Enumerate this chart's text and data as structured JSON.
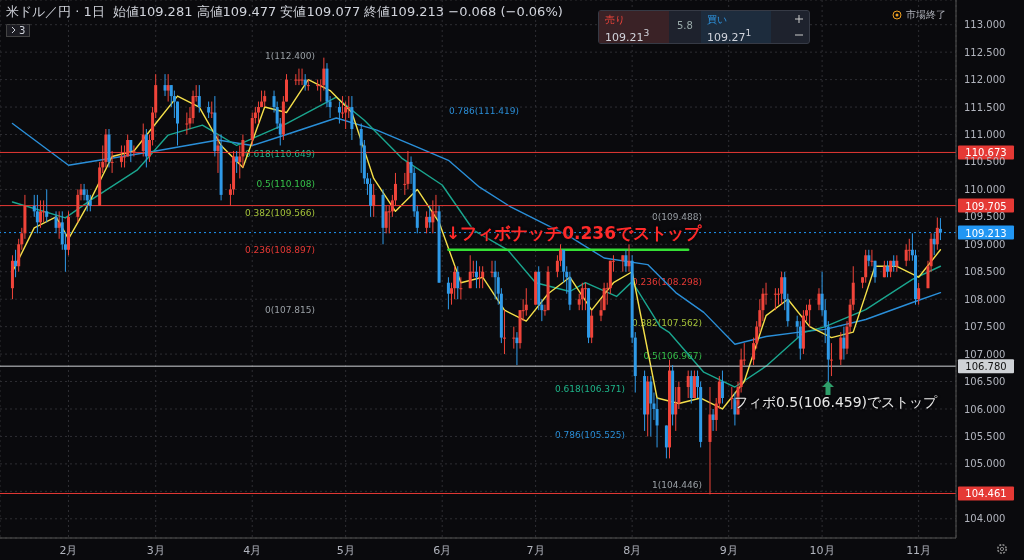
{
  "chart_data": {
    "type": "candlestick",
    "title": "米ドル／円 · 1日",
    "subtitle": "始値109.281 高値109.477 安値109.077 終値109.213 −0.068 (−0.06%)",
    "xlim": [
      "--01-10",
      "--11-13"
    ],
    "xticks": [
      {
        "value": "--02-01",
        "label": "2月"
      },
      {
        "value": "--03-01",
        "label": "3月"
      },
      {
        "value": "--04-01",
        "label": "4月"
      },
      {
        "value": "--05-01",
        "label": "5月"
      },
      {
        "value": "--06-01",
        "label": "6月"
      },
      {
        "value": "--07-01",
        "label": "7月"
      },
      {
        "value": "--08-01",
        "label": "8月"
      },
      {
        "value": "--09-01",
        "label": "9月"
      },
      {
        "value": "--10-01",
        "label": "10月"
      },
      {
        "value": "--11-01",
        "label": "11月"
      }
    ],
    "ylim": [
      103.65,
      113.45
    ],
    "yticks": [
      {
        "value": 104,
        "label": "104.000"
      },
      {
        "value": 104.5,
        "label": null
      },
      {
        "value": 105,
        "label": "105.000"
      },
      {
        "value": 105.5,
        "label": "105.500"
      },
      {
        "value": 106,
        "label": "106.000"
      },
      {
        "value": 106.5,
        "label": "106.500"
      },
      {
        "value": 107,
        "label": "107.000"
      },
      {
        "value": 107.5,
        "label": "107.500"
      },
      {
        "value": 108,
        "label": "108.000"
      },
      {
        "value": 108.5,
        "label": "108.500"
      },
      {
        "value": 109,
        "label": "109.000"
      },
      {
        "value": 109.5,
        "label": "109.500"
      },
      {
        "value": 110,
        "label": "110.000"
      },
      {
        "value": 110.5,
        "label": "110.500"
      },
      {
        "value": 111,
        "label": "111.000"
      },
      {
        "value": 111.5,
        "label": "111.500"
      },
      {
        "value": 112,
        "label": "112.000"
      },
      {
        "value": 112.5,
        "label": "112.500"
      },
      {
        "value": 113,
        "label": "113.000"
      }
    ],
    "grid": true,
    "series": [
      {
        "type": "line",
        "color": "#2a8fd9",
        "x": [
          "--01-14",
          "--02-01",
          "--03-01",
          "--03-21",
          "--04-01",
          "--04-12",
          "--04-28",
          "--05-11",
          "--05-24",
          "--06-03",
          "--06-13",
          "--06-23",
          "--07-12",
          "--07-23",
          "--08-06",
          "--08-15",
          "--08-24",
          "--09-03",
          "--09-13",
          "--09-25",
          "--10-02",
          "--10-15",
          "--10-30",
          "--11-08"
        ],
        "values": [
          111.2,
          110.44,
          110.7,
          110.9,
          110.8,
          111.0,
          111.3,
          111.08,
          110.77,
          110.53,
          110.04,
          109.68,
          109.14,
          108.75,
          108.63,
          108.12,
          107.76,
          107.18,
          107.32,
          107.41,
          107.45,
          107.63,
          107.94,
          108.12
        ]
      },
      {
        "type": "line",
        "color": "#1aa68f",
        "x": [
          "--01-14",
          "--01-31",
          "--02-08",
          "--02-23",
          "--03-05",
          "--03-16",
          "--03-27",
          "--04-12",
          "--04-28",
          "--05-07",
          "--05-19",
          "--06-01",
          "--06-11",
          "--06-22",
          "--07-01",
          "--07-12",
          "--07-17",
          "--07-27",
          "--08-01",
          "--08-10",
          "--08-13",
          "--08-24",
          "--09-03",
          "--09-13",
          "--09-25",
          "--10-02",
          "--10-15",
          "--10-30",
          "--11-08"
        ],
        "values": [
          109.77,
          109.48,
          109.8,
          110.35,
          110.99,
          111.17,
          110.8,
          111.2,
          111.68,
          111.26,
          110.57,
          110.08,
          109.26,
          108.9,
          108.3,
          108.14,
          108.3,
          108.05,
          108.32,
          107.5,
          107.39,
          106.67,
          106.4,
          106.78,
          107.39,
          107.5,
          107.81,
          108.36,
          108.6
        ]
      },
      {
        "type": "line",
        "color": "#f5e04a",
        "x": [
          "--01-14",
          "--01-21",
          "--01-28",
          "--02-01",
          "--02-08",
          "--02-15",
          "--02-22",
          "--03-01",
          "--03-08",
          "--03-15",
          "--03-22",
          "--03-29",
          "--04-05",
          "--04-12",
          "--04-19",
          "--04-26",
          "--05-03",
          "--05-10",
          "--05-17",
          "--05-24",
          "--05-31",
          "--06-07",
          "--06-14",
          "--06-21",
          "--06-28",
          "--07-05",
          "--07-12",
          "--07-19",
          "--07-26",
          "--08-01",
          "--08-09",
          "--08-16",
          "--08-23",
          "--08-30",
          "--09-06",
          "--09-13",
          "--09-20",
          "--09-27",
          "--10-04",
          "--10-11",
          "--10-18",
          "--10-25",
          "--11-01",
          "--11-08"
        ],
        "values": [
          108.5,
          109.3,
          109.5,
          109.1,
          109.8,
          110.6,
          110.7,
          111.2,
          111.7,
          111.5,
          110.8,
          110.4,
          111.5,
          111.4,
          112.0,
          111.8,
          111.4,
          110.2,
          109.6,
          110.0,
          109.4,
          108.3,
          108.4,
          107.8,
          107.6,
          108.1,
          108.4,
          107.8,
          108.3,
          108.5,
          106.2,
          106.1,
          106.2,
          106.0,
          106.5,
          107.7,
          108.0,
          107.5,
          107.3,
          107.4,
          108.6,
          108.6,
          108.4,
          108.9
        ]
      },
      {
        "type": "line",
        "color": "#35e035",
        "x": [
          "--06-03",
          "--08-19"
        ],
        "values": [
          108.9,
          108.9
        ]
      },
      {
        "colors": [
          "#f0443a",
          "#2f9ae8",
          "#f0443a",
          "#f0443a",
          "#f0443a",
          "#2f9ae8",
          "#2f9ae8",
          "#f0443a",
          "#f0443a",
          "#2f9ae8",
          "#2f9ae8",
          "#f0443a",
          "#2f9ae8",
          "#2f9ae8",
          "#f0443a",
          "#f0443a",
          "#f0443a",
          "#2f9ae8",
          "#2f9ae8",
          "#2f9ae8",
          "#f0443a",
          "#f0443a",
          "#f0443a",
          "#2f9ae8",
          "#f0443a",
          "#f0443a",
          "#f0443a",
          "#f0443a",
          "#2f9ae8",
          "#f0443a",
          "#f0443a",
          "#2f9ae8",
          "#f0443a",
          "#f0443a",
          "#f0443a",
          "#2f9ae8",
          "#f0443a",
          "#2f9ae8",
          "#2f9ae8",
          "#2f9ae8",
          "#f0443a",
          "#f0443a",
          "#f0443a",
          "#f0443a",
          "#2f9ae8",
          "#2f9ae8",
          "#f0443a",
          "#2f9ae8",
          "#f0443a",
          "#2f9ae8",
          "#f0443a",
          "#f0443a",
          "#2f9ae8",
          "#f0443a",
          "#f0443a",
          "#f0443a",
          "#f0443a",
          "#f0443a",
          "#f0443a",
          "#f0443a",
          "#2f9ae8",
          "#2f9ae8",
          "#2f9ae8",
          "#f0443a",
          "#f0443a",
          "#f0443a",
          "#f0443a",
          "#f0443a",
          "#2f9ae8",
          "#f0443a",
          "#f0443a",
          "#f0443a",
          "#f0443a",
          "#2f9ae8",
          "#2f9ae8",
          "#2f9ae8",
          "#f0443a",
          "#f0443a",
          "#f0443a",
          "#2f9ae8",
          "#2f9ae8",
          "#2f9ae8",
          "#2f9ae8",
          "#2f9ae8",
          "#f0443a",
          "#2f9ae8",
          "#f0443a",
          "#f0443a",
          "#f0443a",
          "#f0443a",
          "#f0443a",
          "#f0443a",
          "#2f9ae8",
          "#2f9ae8",
          "#2f9ae8",
          "#f0443a",
          "#2f9ae8",
          "#f0443a",
          "#f0443a",
          "#2f9ae8",
          "#2f9ae8",
          "#f0443a",
          "#f0443a",
          "#2f9ae8",
          "#f0443a",
          "#f0443a",
          "#f0443a",
          "#2f9ae8",
          "#f0443a",
          "#f0443a",
          "#f0443a",
          "#2f9ae8",
          "#2f9ae8",
          "#2f9ae8",
          "#f0443a",
          "#f0443a",
          "#2f9ae8",
          "#f0443a",
          "#f0443a",
          "#f0443a",
          "#f0443a",
          "#2f9ae8",
          "#2f9ae8",
          "#f0443a",
          "#f0443a",
          "#f0443a",
          "#f0443a",
          "#2f9ae8",
          "#2f9ae8",
          "#2f9ae8",
          "#f0443a",
          "#f0443a",
          "#f0443a",
          "#2f9ae8",
          "#f0443a",
          "#f0443a",
          "#f0443a",
          "#f0443a",
          "#f0443a",
          "#f0443a",
          "#f0443a",
          "#2f9ae8",
          "#f0443a",
          "#2f9ae8",
          "#2f9ae8",
          "#2f9ae8",
          "#f0443a",
          "#2f9ae8",
          "#2f9ae8",
          "#2f9ae8",
          "#2f9ae8",
          "#f0443a",
          "#2f9ae8",
          "#f0443a",
          "#f0443a",
          "#f0443a",
          "#2f9ae8",
          "#f0443a",
          "#2f9ae8",
          "#2f9ae8",
          "#f0443a",
          "#2f9ae8",
          "#f0443a",
          "#f0443a",
          "#2f9ae8",
          "#f0443a",
          "#2f9ae8",
          "#f0443a",
          "#f0443a",
          "#f0443a",
          "#f0443a",
          "#f0443a",
          "#f0443a",
          "#f0443a",
          "#f0443a",
          "#f0443a",
          "#f0443a",
          "#f0443a",
          "#2f9ae8",
          "#2f9ae8",
          "#2f9ae8",
          "#2f9ae8",
          "#f0443a",
          "#f0443a",
          "#f0443a",
          "#f0443a",
          "#2f9ae8",
          "#2f9ae8",
          "#2f9ae8",
          "#f0443a",
          "#f0443a",
          "#2f9ae8",
          "#f0443a",
          "#f0443a",
          "#f0443a",
          "#f0443a",
          "#f0443a",
          "#2f9ae8",
          "#f0443a",
          "#2f9ae8",
          "#f0443a",
          "#2f9ae8",
          "#f0443a",
          "#2f9ae8",
          "#f0443a",
          "#f0443a",
          "#f0443a",
          "#2f9ae8",
          "#2f9ae8",
          "#f0443a",
          "#f0443a",
          "#f0443a",
          "#2f9ae8",
          "#f0443a",
          "#2f9ae8"
        ],
        "x": [
          "--01-14",
          "--01-15",
          "--01-16",
          "--01-17",
          "--01-18",
          "--01-21",
          "--01-22",
          "--01-23",
          "--01-24",
          "--01-25",
          "--01-28",
          "--01-29",
          "--01-30",
          "--01-31",
          "--02-01",
          "--02-04",
          "--02-05",
          "--02-06",
          "--02-07",
          "--02-08",
          "--02-11",
          "--02-12",
          "--02-13",
          "--02-14",
          "--02-15",
          "--02-18",
          "--02-19",
          "--02-20",
          "--02-21",
          "--02-22",
          "--02-25",
          "--02-26",
          "--02-27",
          "--02-28",
          "--03-01",
          "--03-04",
          "--03-05",
          "--03-06",
          "--03-07",
          "--03-08",
          "--03-11",
          "--03-12",
          "--03-13",
          "--03-14",
          "--03-15",
          "--03-18",
          "--03-19",
          "--03-20",
          "--03-21",
          "--03-22",
          "--03-25",
          "--03-26",
          "--03-27",
          "--03-28",
          "--03-29",
          "--04-01",
          "--04-02",
          "--04-03",
          "--04-04",
          "--04-05",
          "--04-08",
          "--04-09",
          "--04-10",
          "--04-11",
          "--04-12",
          "--04-15",
          "--04-16",
          "--04-17",
          "--04-18",
          "--04-19",
          "--04-22",
          "--04-23",
          "--04-24",
          "--04-25",
          "--04-26",
          "--04-29",
          "--04-30",
          "--05-01",
          "--05-02",
          "--05-03",
          "--05-06",
          "--05-07",
          "--05-08",
          "--05-09",
          "--05-10",
          "--05-13",
          "--05-14",
          "--05-15",
          "--05-16",
          "--05-17",
          "--05-20",
          "--05-21",
          "--05-22",
          "--05-23",
          "--05-24",
          "--05-27",
          "--05-28",
          "--05-29",
          "--05-30",
          "--05-31",
          "--06-03",
          "--06-04",
          "--06-05",
          "--06-06",
          "--06-07",
          "--06-10",
          "--06-11",
          "--06-12",
          "--06-13",
          "--06-14",
          "--06-17",
          "--06-18",
          "--06-19",
          "--06-20",
          "--06-21",
          "--06-24",
          "--06-25",
          "--06-26",
          "--06-27",
          "--06-28",
          "--07-01",
          "--07-02",
          "--07-03",
          "--07-04",
          "--07-05",
          "--07-08",
          "--07-09",
          "--07-10",
          "--07-11",
          "--07-12",
          "--07-15",
          "--07-16",
          "--07-17",
          "--07-18",
          "--07-19",
          "--07-22",
          "--07-23",
          "--07-24",
          "--07-25",
          "--07-26",
          "--07-29",
          "--07-30",
          "--07-31",
          "--08-01",
          "--08-02",
          "--08-05",
          "--08-06",
          "--08-07",
          "--08-08",
          "--08-09",
          "--08-12",
          "--08-13",
          "--08-14",
          "--08-15",
          "--08-16",
          "--08-19",
          "--08-20",
          "--08-21",
          "--08-22",
          "--08-23",
          "--08-26",
          "--08-27",
          "--08-28",
          "--08-29",
          "--08-30",
          "--09-02",
          "--09-03",
          "--09-04",
          "--09-05",
          "--09-06",
          "--09-09",
          "--09-10",
          "--09-11",
          "--09-12",
          "--09-13",
          "--09-16",
          "--09-17",
          "--09-18",
          "--09-19",
          "--09-20",
          "--09-23",
          "--09-24",
          "--09-25",
          "--09-26",
          "--09-27",
          "--09-30",
          "--10-01",
          "--10-02",
          "--10-03",
          "--10-04",
          "--10-07",
          "--10-08",
          "--10-09",
          "--10-10",
          "--10-11",
          "--10-14",
          "--10-15",
          "--10-16",
          "--10-17",
          "--10-18",
          "--10-21",
          "--10-22",
          "--10-23",
          "--10-24",
          "--10-25",
          "--10-28",
          "--10-29",
          "--10-30",
          "--10-31",
          "--11-01",
          "--11-04",
          "--11-05",
          "--11-06",
          "--11-07",
          "--11-08"
        ],
        "ohlc": [
          [
            108.2,
            108.8,
            108.0,
            108.7
          ],
          [
            108.7,
            108.9,
            108.4,
            108.6
          ],
          [
            108.6,
            109.1,
            108.5,
            109.0
          ],
          [
            109.0,
            109.3,
            108.9,
            109.2
          ],
          [
            109.2,
            109.9,
            109.1,
            109.7
          ],
          [
            109.7,
            109.9,
            109.5,
            109.6
          ],
          [
            109.6,
            109.9,
            109.2,
            109.4
          ],
          [
            109.4,
            109.8,
            109.3,
            109.6
          ],
          [
            109.6,
            109.8,
            109.4,
            109.6
          ],
          [
            109.6,
            110.0,
            109.4,
            109.5
          ],
          [
            109.5,
            109.6,
            109.2,
            109.3
          ],
          [
            109.3,
            109.6,
            109.1,
            109.4
          ],
          [
            109.4,
            109.6,
            108.9,
            109.0
          ],
          [
            109.0,
            109.2,
            108.5,
            108.9
          ],
          [
            108.9,
            109.6,
            108.8,
            109.5
          ],
          [
            109.5,
            110.0,
            109.4,
            109.9
          ],
          [
            109.9,
            110.1,
            109.8,
            110.0
          ],
          [
            110.0,
            110.1,
            109.8,
            109.9
          ],
          [
            109.9,
            110.0,
            109.6,
            109.8
          ],
          [
            109.8,
            109.9,
            109.6,
            109.7
          ],
          [
            109.7,
            110.5,
            109.7,
            110.4
          ],
          [
            110.4,
            110.8,
            110.3,
            110.5
          ],
          [
            110.5,
            111.1,
            110.4,
            111.0
          ],
          [
            111.0,
            111.1,
            110.4,
            110.5
          ],
          [
            110.5,
            110.7,
            110.3,
            110.5
          ],
          [
            110.5,
            110.8,
            110.4,
            110.6
          ],
          [
            110.6,
            110.8,
            110.4,
            110.6
          ],
          [
            110.6,
            111.0,
            110.6,
            110.9
          ],
          [
            110.9,
            110.9,
            110.5,
            110.7
          ],
          [
            110.7,
            110.8,
            110.6,
            110.7
          ],
          [
            110.7,
            111.2,
            110.6,
            111.0
          ],
          [
            111.0,
            111.1,
            110.4,
            110.6
          ],
          [
            110.6,
            111.0,
            110.5,
            110.9
          ],
          [
            110.9,
            111.5,
            110.8,
            111.4
          ],
          [
            111.4,
            112.1,
            111.3,
            111.9
          ],
          [
            111.9,
            112.1,
            111.7,
            111.8
          ],
          [
            111.8,
            112.1,
            111.6,
            111.9
          ],
          [
            111.9,
            111.9,
            111.5,
            111.7
          ],
          [
            111.7,
            111.8,
            111.3,
            111.6
          ],
          [
            111.6,
            111.6,
            110.8,
            111.2
          ],
          [
            111.2,
            111.4,
            111.0,
            111.2
          ],
          [
            111.2,
            111.5,
            111.1,
            111.3
          ],
          [
            111.3,
            111.8,
            111.2,
            111.7
          ],
          [
            111.7,
            111.9,
            111.6,
            111.7
          ],
          [
            111.7,
            111.9,
            111.4,
            111.5
          ],
          [
            111.5,
            111.6,
            111.3,
            111.4
          ],
          [
            111.4,
            111.6,
            111.3,
            111.4
          ],
          [
            111.4,
            111.7,
            110.6,
            110.7
          ],
          [
            110.7,
            111.0,
            110.3,
            110.8
          ],
          [
            110.8,
            111.0,
            109.8,
            109.9
          ],
          [
            109.9,
            110.1,
            109.7,
            110.0
          ],
          [
            110.0,
            110.7,
            109.9,
            110.6
          ],
          [
            110.6,
            110.7,
            110.3,
            110.5
          ],
          [
            110.5,
            110.8,
            110.2,
            110.6
          ],
          [
            110.6,
            111.0,
            110.4,
            110.9
          ],
          [
            110.9,
            111.4,
            110.8,
            111.3
          ],
          [
            111.3,
            111.5,
            111.2,
            111.4
          ],
          [
            111.4,
            111.6,
            111.2,
            111.5
          ],
          [
            111.5,
            111.8,
            111.5,
            111.6
          ],
          [
            111.6,
            111.8,
            111.5,
            111.7
          ],
          [
            111.7,
            111.8,
            111.4,
            111.5
          ],
          [
            111.5,
            111.6,
            111.1,
            111.2
          ],
          [
            111.2,
            111.3,
            110.8,
            111.0
          ],
          [
            111.0,
            111.7,
            110.9,
            111.6
          ],
          [
            111.6,
            112.1,
            111.6,
            112.0
          ],
          [
            112.0,
            112.1,
            111.9,
            112.0
          ],
          [
            112.0,
            112.2,
            111.9,
            112.0
          ],
          [
            112.0,
            112.2,
            111.9,
            112.0
          ],
          [
            112.0,
            112.1,
            111.8,
            111.9
          ],
          [
            111.9,
            112.0,
            111.8,
            111.9
          ],
          [
            111.9,
            112.0,
            111.8,
            111.9
          ],
          [
            111.9,
            112.0,
            111.6,
            111.9
          ],
          [
            111.9,
            112.4,
            111.8,
            112.2
          ],
          [
            112.2,
            112.3,
            111.5,
            111.6
          ],
          [
            111.6,
            111.7,
            111.3,
            111.5
          ],
          [
            111.5,
            111.6,
            111.2,
            111.4
          ],
          [
            111.4,
            111.7,
            111.3,
            111.4
          ],
          [
            111.4,
            111.6,
            111.1,
            111.5
          ],
          [
            111.5,
            111.7,
            111.3,
            111.5
          ],
          [
            111.5,
            111.7,
            110.9,
            111.1
          ],
          [
            111.1,
            111.2,
            110.3,
            110.8
          ],
          [
            110.8,
            110.9,
            110.1,
            110.2
          ],
          [
            110.2,
            110.3,
            109.9,
            110.1
          ],
          [
            110.1,
            110.2,
            109.5,
            109.7
          ],
          [
            109.7,
            110.1,
            109.5,
            109.9
          ],
          [
            109.9,
            110.0,
            109.0,
            109.3
          ],
          [
            109.3,
            109.7,
            109.2,
            109.6
          ],
          [
            109.6,
            109.7,
            109.2,
            109.6
          ],
          [
            109.6,
            109.9,
            109.5,
            109.8
          ],
          [
            109.8,
            110.3,
            109.7,
            110.1
          ],
          [
            110.1,
            110.3,
            109.9,
            110.1
          ],
          [
            110.1,
            110.7,
            110.0,
            110.5
          ],
          [
            110.5,
            110.6,
            110.1,
            110.3
          ],
          [
            110.3,
            110.4,
            109.5,
            109.6
          ],
          [
            109.6,
            109.7,
            109.2,
            109.3
          ],
          [
            109.3,
            109.6,
            109.2,
            109.5
          ],
          [
            109.5,
            109.7,
            109.3,
            109.4
          ],
          [
            109.4,
            109.8,
            109.2,
            109.6
          ],
          [
            109.6,
            109.9,
            109.5,
            109.6
          ],
          [
            109.6,
            109.7,
            108.3,
            108.3
          ],
          [
            108.3,
            108.4,
            107.815,
            108.1
          ],
          [
            108.1,
            108.3,
            107.9,
            108.2
          ],
          [
            108.2,
            108.6,
            108.0,
            108.5
          ],
          [
            108.5,
            108.6,
            108.0,
            108.2
          ],
          [
            108.2,
            108.4,
            108.0,
            108.2
          ],
          [
            108.2,
            108.8,
            108.2,
            108.5
          ],
          [
            108.5,
            108.7,
            108.4,
            108.5
          ],
          [
            108.5,
            108.7,
            108.2,
            108.4
          ],
          [
            108.4,
            108.6,
            108.2,
            108.4
          ],
          [
            108.4,
            108.6,
            108.2,
            108.5
          ],
          [
            108.5,
            108.7,
            108.4,
            108.5
          ],
          [
            108.5,
            108.7,
            108.0,
            108.4
          ],
          [
            108.4,
            108.5,
            107.9,
            108.1
          ],
          [
            108.1,
            108.2,
            107.2,
            107.3
          ],
          [
            107.3,
            107.8,
            107.0,
            107.3
          ],
          [
            107.3,
            107.5,
            107.1,
            107.3
          ],
          [
            107.3,
            107.4,
            106.8,
            107.2
          ],
          [
            107.2,
            107.8,
            107.1,
            107.8
          ],
          [
            107.8,
            108.0,
            107.6,
            107.8
          ],
          [
            107.8,
            108.2,
            107.7,
            107.9
          ],
          [
            107.9,
            108.5,
            107.9,
            108.5
          ],
          [
            108.5,
            108.6,
            107.8,
            107.9
          ],
          [
            107.9,
            108.0,
            107.6,
            107.8
          ],
          [
            107.8,
            107.9,
            107.7,
            107.8
          ],
          [
            107.8,
            108.6,
            107.8,
            108.5
          ],
          [
            108.5,
            108.8,
            108.4,
            108.7
          ],
          [
            108.7,
            109.0,
            108.6,
            108.9
          ],
          [
            108.9,
            108.9,
            108.3,
            108.5
          ],
          [
            108.5,
            108.6,
            108.1,
            108.4
          ],
          [
            108.4,
            108.5,
            107.8,
            107.9
          ],
          [
            107.9,
            108.1,
            107.8,
            108.0
          ],
          [
            108.0,
            108.3,
            107.8,
            108.2
          ],
          [
            108.2,
            108.3,
            107.8,
            108.2
          ],
          [
            108.2,
            108.2,
            107.2,
            107.3
          ],
          [
            107.3,
            107.8,
            107.2,
            107.7
          ],
          [
            107.7,
            108.0,
            107.6,
            107.8
          ],
          [
            107.8,
            108.3,
            107.8,
            108.2
          ],
          [
            108.2,
            108.3,
            107.9,
            108.2
          ],
          [
            108.2,
            108.7,
            108.1,
            108.7
          ],
          [
            108.7,
            108.8,
            108.5,
            108.7
          ],
          [
            108.7,
            108.8,
            108.5,
            108.8
          ],
          [
            108.8,
            108.9,
            108.5,
            108.6
          ],
          [
            108.6,
            109.0,
            108.5,
            108.7
          ],
          [
            108.7,
            108.8,
            107.2,
            107.3
          ],
          [
            107.3,
            107.4,
            106.3,
            106.6
          ],
          [
            106.6,
            106.7,
            105.6,
            105.9
          ],
          [
            105.9,
            106.6,
            105.5,
            106.5
          ],
          [
            106.5,
            106.6,
            105.5,
            106.1
          ],
          [
            106.1,
            106.3,
            105.8,
            106.0
          ],
          [
            106.0,
            106.2,
            105.3,
            105.7
          ],
          [
            105.7,
            105.7,
            105.1,
            105.3
          ],
          [
            105.3,
            106.9,
            105.1,
            106.7
          ],
          [
            106.7,
            106.8,
            105.7,
            105.9
          ],
          [
            105.9,
            106.4,
            105.6,
            106.1
          ],
          [
            106.1,
            106.5,
            106.0,
            106.4
          ],
          [
            106.4,
            106.7,
            106.2,
            106.6
          ],
          [
            106.6,
            106.7,
            106.1,
            106.2
          ],
          [
            106.2,
            106.7,
            106.2,
            106.6
          ],
          [
            106.6,
            106.7,
            106.2,
            106.4
          ],
          [
            106.4,
            106.5,
            105.3,
            105.4
          ],
          [
            105.4,
            106.4,
            104.446,
            105.9
          ],
          [
            105.9,
            106.0,
            105.6,
            105.8
          ],
          [
            105.8,
            106.2,
            105.6,
            106.1
          ],
          [
            106.1,
            106.6,
            106.0,
            106.5
          ],
          [
            106.5,
            106.7,
            106.1,
            106.2
          ],
          [
            106.2,
            106.4,
            106.0,
            106.2
          ],
          [
            106.2,
            106.3,
            105.7,
            105.9
          ],
          [
            105.9,
            106.5,
            105.9,
            106.4
          ],
          [
            106.4,
            107.1,
            106.3,
            106.9
          ],
          [
            106.9,
            107.2,
            106.8,
            106.9
          ],
          [
            106.9,
            107.3,
            106.8,
            107.2
          ],
          [
            107.2,
            107.6,
            107.1,
            107.5
          ],
          [
            107.5,
            108.0,
            107.4,
            107.8
          ],
          [
            107.8,
            108.2,
            107.6,
            108.1
          ],
          [
            108.1,
            108.3,
            107.9,
            108.1
          ],
          [
            108.1,
            108.2,
            107.8,
            108.1
          ],
          [
            108.1,
            108.2,
            107.9,
            108.1
          ],
          [
            108.1,
            108.5,
            107.9,
            108.4
          ],
          [
            108.4,
            108.5,
            107.8,
            108.0
          ],
          [
            108.0,
            108.1,
            107.5,
            107.6
          ],
          [
            107.6,
            107.7,
            107.3,
            107.5
          ],
          [
            107.5,
            107.6,
            106.9,
            107.1
          ],
          [
            107.1,
            107.8,
            107.0,
            107.7
          ],
          [
            107.7,
            107.9,
            107.6,
            107.8
          ],
          [
            107.8,
            108.0,
            107.5,
            107.9
          ],
          [
            107.9,
            108.2,
            107.8,
            108.1
          ],
          [
            108.1,
            108.5,
            107.7,
            107.8
          ],
          [
            107.8,
            108.0,
            107.2,
            107.5
          ],
          [
            107.5,
            107.6,
            106.459,
            106.9
          ],
          [
            106.9,
            107.2,
            106.6,
            106.9
          ],
          [
            106.9,
            107.4,
            106.8,
            107.3
          ],
          [
            107.3,
            107.5,
            106.9,
            107.1
          ],
          [
            107.1,
            107.6,
            107.0,
            107.5
          ],
          [
            107.5,
            108.0,
            107.4,
            107.9
          ],
          [
            107.9,
            108.6,
            107.8,
            108.3
          ],
          [
            108.3,
            108.4,
            108.2,
            108.4
          ],
          [
            108.4,
            108.9,
            108.3,
            108.8
          ],
          [
            108.8,
            108.9,
            108.6,
            108.7
          ],
          [
            108.7,
            108.9,
            108.6,
            108.7
          ],
          [
            108.7,
            108.7,
            108.3,
            108.4
          ],
          [
            108.4,
            108.7,
            108.4,
            108.6
          ],
          [
            108.6,
            108.7,
            108.4,
            108.5
          ],
          [
            108.5,
            108.7,
            108.4,
            108.7
          ],
          [
            108.7,
            108.8,
            108.5,
            108.6
          ],
          [
            108.6,
            108.8,
            108.5,
            108.7
          ],
          [
            108.7,
            109.0,
            108.6,
            108.9
          ],
          [
            108.9,
            109.1,
            108.7,
            108.9
          ],
          [
            108.9,
            109.2,
            108.7,
            108.8
          ],
          [
            108.8,
            108.9,
            107.9,
            108.0
          ],
          [
            108.0,
            108.3,
            107.9,
            108.2
          ],
          [
            108.2,
            108.7,
            108.2,
            108.6
          ],
          [
            108.6,
            109.2,
            108.5,
            109.1
          ],
          [
            109.1,
            109.2,
            108.8,
            109.0
          ],
          [
            109.0,
            109.488,
            108.9,
            109.3
          ],
          [
            109.281,
            109.477,
            109.077,
            109.213
          ]
        ]
      }
    ],
    "ref_lines": [
      {
        "axis": "y",
        "value": 110.673,
        "label": "110.673",
        "color": "#e53935"
      },
      {
        "axis": "y",
        "value": 109.705,
        "label": "109.705",
        "color": "#e53935"
      },
      {
        "axis": "y",
        "value": 109.213,
        "label": "109.213",
        "color": "#2196f3",
        "line_style": "dotted"
      },
      {
        "axis": "y",
        "value": 106.78,
        "label": "106.780",
        "color": "#cfd2d6"
      },
      {
        "axis": "y",
        "value": 104.461,
        "label": "104.461",
        "color": "#e53935"
      }
    ],
    "annotations": [
      "1(112.400)",
      "0.786(111.419)",
      "0.618(110.649)",
      "0.5(110.108)",
      "0.382(109.566)",
      "0.236(108.897)",
      "0(107.815)",
      "0(109.488)",
      "0.236(108.298)",
      "0.382(107.562)",
      "0.5(106.967)",
      "0.618(106.371)",
      "0.786(105.525)",
      "1(104.446)",
      "↓フィボナッチ0.236でストップ",
      "フィボ0.5(106.459)でストップ",
      "3",
      "売り",
      "109.21$^{3}$",
      "5.8",
      "買い",
      "109.27$^{1}$",
      "市場終了"
    ]
  }
}
